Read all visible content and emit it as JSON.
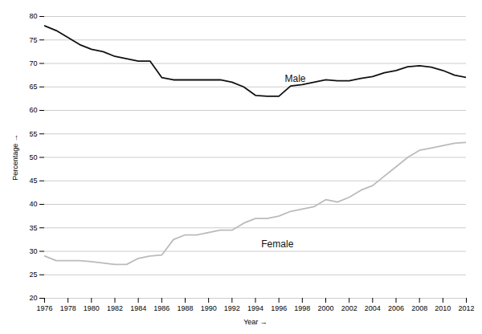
{
  "chart_data": {
    "type": "line",
    "x_label": "Year",
    "y_label": "Percentage",
    "series": [
      {
        "name": "Male",
        "color": "#111111",
        "x": [
          1976,
          1977,
          1978,
          1979,
          1980,
          1981,
          1982,
          1983,
          1984,
          1985,
          1986,
          1987,
          1988,
          1989,
          1990,
          1991,
          1992,
          1993,
          1994,
          1995,
          1996,
          1997,
          1998,
          1999,
          2000,
          2001,
          2002,
          2003,
          2004,
          2005,
          2006,
          2007,
          2008,
          2009,
          2010,
          2011,
          2012
        ],
        "values": [
          78.0,
          77.0,
          75.5,
          74.0,
          73.0,
          72.5,
          71.5,
          71.0,
          70.5,
          70.5,
          67.0,
          66.5,
          66.5,
          66.5,
          66.5,
          66.5,
          66.0,
          65.0,
          63.2,
          63.0,
          63.0,
          65.2,
          65.5,
          66.0,
          66.5,
          66.3,
          66.3,
          66.8,
          67.2,
          68.0,
          68.5,
          69.3,
          69.5,
          69.2,
          68.5,
          67.5,
          67.0
        ]
      },
      {
        "name": "Female",
        "color": "#bbbbbb",
        "x": [
          1976,
          1977,
          1978,
          1979,
          1980,
          1981,
          1982,
          1983,
          1984,
          1985,
          1986,
          1987,
          1988,
          1989,
          1990,
          1991,
          1992,
          1993,
          1994,
          1995,
          1996,
          1997,
          1998,
          1999,
          2000,
          2001,
          2002,
          2003,
          2004,
          2005,
          2006,
          2007,
          2008,
          2009,
          2010,
          2011,
          2012
        ],
        "values": [
          29.0,
          28.0,
          28.0,
          28.0,
          27.8,
          27.5,
          27.2,
          27.2,
          28.5,
          29.0,
          29.2,
          32.5,
          33.5,
          33.5,
          34.0,
          34.5,
          34.5,
          36.0,
          37.0,
          37.0,
          37.5,
          38.5,
          39.0,
          39.5,
          41.0,
          40.5,
          41.5,
          43.0,
          44.0,
          46.0,
          48.0,
          50.0,
          51.5,
          52.0,
          52.5,
          53.0,
          53.2
        ]
      }
    ],
    "annotations": [
      {
        "text": "Male",
        "x": 1996.5,
        "y": 66.8,
        "color": "#111111"
      },
      {
        "text": "Female",
        "x": 1994.5,
        "y": 31.5,
        "color": "#111111"
      }
    ],
    "xlim": [
      1976,
      2012
    ],
    "xticks": [
      1976,
      1978,
      1980,
      1982,
      1984,
      1986,
      1988,
      1990,
      1992,
      1994,
      1996,
      1998,
      2000,
      2002,
      2004,
      2006,
      2008,
      2010,
      2012
    ],
    "ylim": [
      20,
      80
    ],
    "yticks": [
      20,
      25,
      30,
      35,
      40,
      45,
      50,
      55,
      60,
      65,
      70,
      75,
      80
    ],
    "grid": "y",
    "legend": false
  }
}
